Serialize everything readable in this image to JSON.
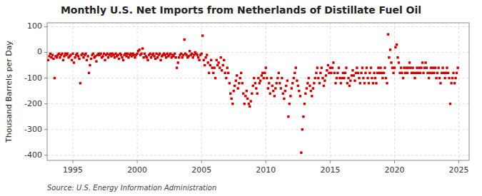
{
  "chart_data": {
    "type": "scatter",
    "title": "Monthly U.S. Net Imports from Netherlands of Distillate Fuel Oil",
    "ylabel": "Thousand Barrels per Day",
    "annotations": [
      "Source: U.S. Energy Information Administration"
    ],
    "color": "#cc0000",
    "marker": "square",
    "grid": true,
    "xlim": [
      1993.0,
      2025.8
    ],
    "xticks": [
      1995,
      2000,
      2005,
      2010,
      2015,
      2020,
      2025
    ],
    "ylim": [
      -420,
      115
    ],
    "yticks": [
      -400,
      -300,
      -200,
      -100,
      0,
      100
    ],
    "x": [
      1993.08,
      1993.17,
      1993.25,
      1993.33,
      1993.42,
      1993.5,
      1993.58,
      1993.67,
      1993.75,
      1993.83,
      1993.92,
      1994.0,
      1994.08,
      1994.17,
      1994.25,
      1994.33,
      1994.42,
      1994.5,
      1994.58,
      1994.67,
      1994.75,
      1994.83,
      1994.92,
      1995.0,
      1995.08,
      1995.17,
      1995.25,
      1995.33,
      1995.42,
      1995.5,
      1995.58,
      1995.67,
      1995.75,
      1995.83,
      1995.92,
      1996.0,
      1996.08,
      1996.17,
      1996.25,
      1996.33,
      1996.42,
      1996.5,
      1996.58,
      1996.67,
      1996.75,
      1996.83,
      1996.92,
      1997.0,
      1997.08,
      1997.17,
      1997.25,
      1997.33,
      1997.42,
      1997.5,
      1997.58,
      1997.67,
      1997.75,
      1997.83,
      1997.92,
      1998.0,
      1998.08,
      1998.17,
      1998.25,
      1998.33,
      1998.42,
      1998.5,
      1998.58,
      1998.67,
      1998.75,
      1998.83,
      1998.92,
      1999.0,
      1999.08,
      1999.17,
      1999.25,
      1999.33,
      1999.42,
      1999.5,
      1999.58,
      1999.67,
      1999.75,
      1999.83,
      1999.92,
      2000.0,
      2000.08,
      2000.17,
      2000.25,
      2000.33,
      2000.42,
      2000.5,
      2000.58,
      2000.67,
      2000.75,
      2000.83,
      2000.92,
      2001.0,
      2001.08,
      2001.17,
      2001.25,
      2001.33,
      2001.42,
      2001.5,
      2001.58,
      2001.67,
      2001.75,
      2001.83,
      2001.92,
      2002.0,
      2002.08,
      2002.17,
      2002.25,
      2002.33,
      2002.42,
      2002.5,
      2002.58,
      2002.67,
      2002.75,
      2002.83,
      2002.92,
      2003.0,
      2003.08,
      2003.17,
      2003.25,
      2003.33,
      2003.42,
      2003.5,
      2003.58,
      2003.67,
      2003.75,
      2003.83,
      2003.92,
      2004.0,
      2004.08,
      2004.17,
      2004.25,
      2004.33,
      2004.42,
      2004.5,
      2004.58,
      2004.67,
      2004.75,
      2004.83,
      2004.92,
      2005.0,
      2005.08,
      2005.17,
      2005.25,
      2005.33,
      2005.42,
      2005.5,
      2005.58,
      2005.67,
      2005.75,
      2005.83,
      2005.92,
      2006.0,
      2006.08,
      2006.17,
      2006.25,
      2006.33,
      2006.42,
      2006.5,
      2006.58,
      2006.67,
      2006.75,
      2006.83,
      2006.92,
      2007.0,
      2007.08,
      2007.17,
      2007.25,
      2007.33,
      2007.42,
      2007.5,
      2007.58,
      2007.67,
      2007.75,
      2007.83,
      2007.92,
      2008.0,
      2008.08,
      2008.17,
      2008.25,
      2008.33,
      2008.42,
      2008.5,
      2008.58,
      2008.67,
      2008.75,
      2008.83,
      2008.92,
      2009.0,
      2009.08,
      2009.17,
      2009.25,
      2009.33,
      2009.42,
      2009.5,
      2009.58,
      2009.67,
      2009.75,
      2009.83,
      2009.92,
      2010.0,
      2010.08,
      2010.17,
      2010.25,
      2010.33,
      2010.42,
      2010.5,
      2010.58,
      2010.67,
      2010.75,
      2010.83,
      2010.92,
      2011.0,
      2011.08,
      2011.17,
      2011.25,
      2011.33,
      2011.42,
      2011.5,
      2011.58,
      2011.67,
      2011.75,
      2011.83,
      2011.92,
      2012.0,
      2012.08,
      2012.17,
      2012.25,
      2012.33,
      2012.42,
      2012.5,
      2012.58,
      2012.67,
      2012.75,
      2012.83,
      2012.92,
      2013.0,
      2013.08,
      2013.17,
      2013.25,
      2013.33,
      2013.42,
      2013.5,
      2013.58,
      2013.67,
      2013.75,
      2013.83,
      2013.92,
      2014.0,
      2014.08,
      2014.17,
      2014.25,
      2014.33,
      2014.42,
      2014.5,
      2014.58,
      2014.67,
      2014.75,
      2014.83,
      2014.92,
      2015.0,
      2015.08,
      2015.17,
      2015.25,
      2015.33,
      2015.42,
      2015.5,
      2015.58,
      2015.67,
      2015.75,
      2015.83,
      2015.92,
      2016.0,
      2016.08,
      2016.17,
      2016.25,
      2016.33,
      2016.42,
      2016.5,
      2016.58,
      2016.67,
      2016.75,
      2016.83,
      2016.92,
      2017.0,
      2017.08,
      2017.17,
      2017.25,
      2017.33,
      2017.42,
      2017.5,
      2017.58,
      2017.67,
      2017.75,
      2017.83,
      2017.92,
      2018.0,
      2018.08,
      2018.17,
      2018.25,
      2018.33,
      2018.42,
      2018.5,
      2018.58,
      2018.67,
      2018.75,
      2018.83,
      2018.92,
      2019.0,
      2019.08,
      2019.17,
      2019.25,
      2019.33,
      2019.42,
      2019.5,
      2019.58,
      2019.67,
      2019.75,
      2019.83,
      2019.92,
      2020.0,
      2020.08,
      2020.17,
      2020.25,
      2020.33,
      2020.42,
      2020.5,
      2020.58,
      2020.67,
      2020.75,
      2020.83,
      2020.92,
      2021.0,
      2021.08,
      2021.17,
      2021.25,
      2021.33,
      2021.42,
      2021.5,
      2021.58,
      2021.67,
      2021.75,
      2021.83,
      2021.92,
      2022.0,
      2022.08,
      2022.17,
      2022.25,
      2022.33,
      2022.42,
      2022.5,
      2022.58,
      2022.67,
      2022.75,
      2022.83,
      2022.92,
      2023.0,
      2023.08,
      2023.17,
      2023.25,
      2023.33,
      2023.42,
      2023.5,
      2023.58,
      2023.67,
      2023.75,
      2023.83,
      2023.92,
      2024.0,
      2024.08,
      2024.17,
      2024.25,
      2024.33,
      2024.42,
      2024.5,
      2024.58,
      2024.67,
      2024.75,
      2024.83,
      2024.92
    ],
    "values": [
      -30,
      -15,
      -5,
      -20,
      -10,
      -25,
      -100,
      -15,
      -20,
      -10,
      -5,
      -20,
      -10,
      -5,
      -30,
      -15,
      -5,
      -10,
      -5,
      -20,
      -15,
      -10,
      -30,
      -5,
      -40,
      -20,
      -10,
      -5,
      -15,
      -25,
      -120,
      -10,
      -5,
      -20,
      -10,
      -5,
      -30,
      -15,
      -80,
      -50,
      -25,
      -10,
      -5,
      -20,
      -15,
      -35,
      -10,
      -5,
      -10,
      -5,
      -20,
      -15,
      -5,
      -30,
      -10,
      -5,
      -20,
      -10,
      -5,
      -15,
      -5,
      -10,
      -20,
      -5,
      -15,
      -10,
      -25,
      -5,
      -10,
      -20,
      -30,
      -10,
      -5,
      -15,
      -5,
      -20,
      -10,
      -5,
      -15,
      -5,
      -10,
      -20,
      -10,
      -5,
      5,
      10,
      -10,
      -5,
      15,
      -20,
      -5,
      -15,
      -20,
      -30,
      -10,
      -5,
      -20,
      -10,
      -5,
      -15,
      -25,
      -5,
      -20,
      -10,
      -5,
      -30,
      -15,
      -10,
      -5,
      -10,
      -20,
      -5,
      -15,
      -10,
      -5,
      -20,
      -10,
      -15,
      -5,
      -20,
      -60,
      -40,
      -20,
      -10,
      -5,
      -20,
      -10,
      50,
      -5,
      -10,
      -20,
      -15,
      5,
      -10,
      -5,
      -20,
      -10,
      0,
      -5,
      -10,
      -20,
      -30,
      -10,
      -5,
      65,
      -30,
      -50,
      -20,
      -10,
      -40,
      -80,
      -50,
      -30,
      -60,
      -80,
      -60,
      -100,
      -30,
      -50,
      -40,
      -60,
      -20,
      -70,
      -50,
      -30,
      -80,
      -100,
      -60,
      -80,
      -120,
      -160,
      -180,
      -200,
      -150,
      -130,
      -110,
      -90,
      -140,
      -120,
      -100,
      -80,
      -120,
      -160,
      -200,
      -170,
      -150,
      -180,
      -200,
      -210,
      -190,
      -160,
      -130,
      -100,
      -120,
      -140,
      -160,
      -100,
      -120,
      -110,
      -90,
      -80,
      -100,
      -80,
      -60,
      -100,
      -140,
      -120,
      -160,
      -100,
      -130,
      -150,
      -170,
      -140,
      -120,
      -100,
      -80,
      -120,
      -140,
      -100,
      -160,
      -180,
      -150,
      -130,
      -110,
      -250,
      -200,
      -170,
      -140,
      -120,
      -100,
      -80,
      -60,
      -110,
      -130,
      -150,
      -170,
      -390,
      -300,
      -250,
      -200,
      -160,
      -140,
      -120,
      -100,
      -130,
      -150,
      -170,
      -140,
      -120,
      -100,
      -80,
      -60,
      -100,
      -120,
      -80,
      -60,
      -100,
      -130,
      -110,
      -90,
      -70,
      -50,
      -80,
      -60,
      -80,
      -60,
      -40,
      -80,
      -120,
      -100,
      -80,
      -60,
      -100,
      -120,
      -100,
      -80,
      -100,
      -80,
      -60,
      -120,
      -100,
      -130,
      -110,
      -90,
      -70,
      -90,
      -110,
      -80,
      -60,
      -80,
      -100,
      -120,
      -80,
      -60,
      -100,
      -120,
      -80,
      -60,
      -100,
      -120,
      -80,
      -60,
      -100,
      -120,
      -80,
      -100,
      -120,
      -80,
      -60,
      -80,
      -60,
      -80,
      -100,
      -80,
      -60,
      -100,
      -120,
      70,
      -20,
      10,
      -40,
      -60,
      -80,
      -60,
      20,
      30,
      -20,
      -40,
      -80,
      -60,
      -80,
      -100,
      -60,
      -80,
      -60,
      -80,
      -60,
      -40,
      -60,
      -80,
      -60,
      -80,
      -100,
      -80,
      -60,
      -80,
      -60,
      -80,
      -60,
      -40,
      -80,
      -60,
      -40,
      -60,
      -80,
      -100,
      -80,
      -60,
      -80,
      -60,
      -80,
      -60,
      -100,
      -80,
      -60,
      -100,
      -120,
      -80,
      -60,
      -80,
      -100,
      -80,
      -60,
      -80,
      -100,
      -200,
      -120,
      -100,
      -80,
      -120,
      -100,
      -80,
      -60
    ]
  }
}
